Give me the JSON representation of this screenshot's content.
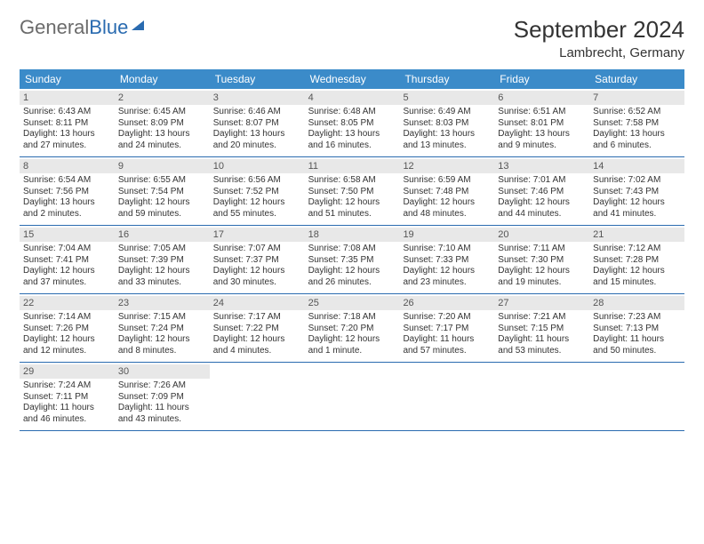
{
  "logo": {
    "part1": "General",
    "part2": "Blue"
  },
  "title": "September 2024",
  "location": "Lambrecht, Germany",
  "colors": {
    "header_bg": "#3b8bc9",
    "header_text": "#ffffff",
    "daynum_bg": "#e8e8e8",
    "rule": "#2a6bb0",
    "text": "#333333"
  },
  "dayNames": [
    "Sunday",
    "Monday",
    "Tuesday",
    "Wednesday",
    "Thursday",
    "Friday",
    "Saturday"
  ],
  "weeks": [
    [
      {
        "n": "1",
        "sr": "Sunrise: 6:43 AM",
        "ss": "Sunset: 8:11 PM",
        "d1": "Daylight: 13 hours",
        "d2": "and 27 minutes."
      },
      {
        "n": "2",
        "sr": "Sunrise: 6:45 AM",
        "ss": "Sunset: 8:09 PM",
        "d1": "Daylight: 13 hours",
        "d2": "and 24 minutes."
      },
      {
        "n": "3",
        "sr": "Sunrise: 6:46 AM",
        "ss": "Sunset: 8:07 PM",
        "d1": "Daylight: 13 hours",
        "d2": "and 20 minutes."
      },
      {
        "n": "4",
        "sr": "Sunrise: 6:48 AM",
        "ss": "Sunset: 8:05 PM",
        "d1": "Daylight: 13 hours",
        "d2": "and 16 minutes."
      },
      {
        "n": "5",
        "sr": "Sunrise: 6:49 AM",
        "ss": "Sunset: 8:03 PM",
        "d1": "Daylight: 13 hours",
        "d2": "and 13 minutes."
      },
      {
        "n": "6",
        "sr": "Sunrise: 6:51 AM",
        "ss": "Sunset: 8:01 PM",
        "d1": "Daylight: 13 hours",
        "d2": "and 9 minutes."
      },
      {
        "n": "7",
        "sr": "Sunrise: 6:52 AM",
        "ss": "Sunset: 7:58 PM",
        "d1": "Daylight: 13 hours",
        "d2": "and 6 minutes."
      }
    ],
    [
      {
        "n": "8",
        "sr": "Sunrise: 6:54 AM",
        "ss": "Sunset: 7:56 PM",
        "d1": "Daylight: 13 hours",
        "d2": "and 2 minutes."
      },
      {
        "n": "9",
        "sr": "Sunrise: 6:55 AM",
        "ss": "Sunset: 7:54 PM",
        "d1": "Daylight: 12 hours",
        "d2": "and 59 minutes."
      },
      {
        "n": "10",
        "sr": "Sunrise: 6:56 AM",
        "ss": "Sunset: 7:52 PM",
        "d1": "Daylight: 12 hours",
        "d2": "and 55 minutes."
      },
      {
        "n": "11",
        "sr": "Sunrise: 6:58 AM",
        "ss": "Sunset: 7:50 PM",
        "d1": "Daylight: 12 hours",
        "d2": "and 51 minutes."
      },
      {
        "n": "12",
        "sr": "Sunrise: 6:59 AM",
        "ss": "Sunset: 7:48 PM",
        "d1": "Daylight: 12 hours",
        "d2": "and 48 minutes."
      },
      {
        "n": "13",
        "sr": "Sunrise: 7:01 AM",
        "ss": "Sunset: 7:46 PM",
        "d1": "Daylight: 12 hours",
        "d2": "and 44 minutes."
      },
      {
        "n": "14",
        "sr": "Sunrise: 7:02 AM",
        "ss": "Sunset: 7:43 PM",
        "d1": "Daylight: 12 hours",
        "d2": "and 41 minutes."
      }
    ],
    [
      {
        "n": "15",
        "sr": "Sunrise: 7:04 AM",
        "ss": "Sunset: 7:41 PM",
        "d1": "Daylight: 12 hours",
        "d2": "and 37 minutes."
      },
      {
        "n": "16",
        "sr": "Sunrise: 7:05 AM",
        "ss": "Sunset: 7:39 PM",
        "d1": "Daylight: 12 hours",
        "d2": "and 33 minutes."
      },
      {
        "n": "17",
        "sr": "Sunrise: 7:07 AM",
        "ss": "Sunset: 7:37 PM",
        "d1": "Daylight: 12 hours",
        "d2": "and 30 minutes."
      },
      {
        "n": "18",
        "sr": "Sunrise: 7:08 AM",
        "ss": "Sunset: 7:35 PM",
        "d1": "Daylight: 12 hours",
        "d2": "and 26 minutes."
      },
      {
        "n": "19",
        "sr": "Sunrise: 7:10 AM",
        "ss": "Sunset: 7:33 PM",
        "d1": "Daylight: 12 hours",
        "d2": "and 23 minutes."
      },
      {
        "n": "20",
        "sr": "Sunrise: 7:11 AM",
        "ss": "Sunset: 7:30 PM",
        "d1": "Daylight: 12 hours",
        "d2": "and 19 minutes."
      },
      {
        "n": "21",
        "sr": "Sunrise: 7:12 AM",
        "ss": "Sunset: 7:28 PM",
        "d1": "Daylight: 12 hours",
        "d2": "and 15 minutes."
      }
    ],
    [
      {
        "n": "22",
        "sr": "Sunrise: 7:14 AM",
        "ss": "Sunset: 7:26 PM",
        "d1": "Daylight: 12 hours",
        "d2": "and 12 minutes."
      },
      {
        "n": "23",
        "sr": "Sunrise: 7:15 AM",
        "ss": "Sunset: 7:24 PM",
        "d1": "Daylight: 12 hours",
        "d2": "and 8 minutes."
      },
      {
        "n": "24",
        "sr": "Sunrise: 7:17 AM",
        "ss": "Sunset: 7:22 PM",
        "d1": "Daylight: 12 hours",
        "d2": "and 4 minutes."
      },
      {
        "n": "25",
        "sr": "Sunrise: 7:18 AM",
        "ss": "Sunset: 7:20 PM",
        "d1": "Daylight: 12 hours",
        "d2": "and 1 minute."
      },
      {
        "n": "26",
        "sr": "Sunrise: 7:20 AM",
        "ss": "Sunset: 7:17 PM",
        "d1": "Daylight: 11 hours",
        "d2": "and 57 minutes."
      },
      {
        "n": "27",
        "sr": "Sunrise: 7:21 AM",
        "ss": "Sunset: 7:15 PM",
        "d1": "Daylight: 11 hours",
        "d2": "and 53 minutes."
      },
      {
        "n": "28",
        "sr": "Sunrise: 7:23 AM",
        "ss": "Sunset: 7:13 PM",
        "d1": "Daylight: 11 hours",
        "d2": "and 50 minutes."
      }
    ],
    [
      {
        "n": "29",
        "sr": "Sunrise: 7:24 AM",
        "ss": "Sunset: 7:11 PM",
        "d1": "Daylight: 11 hours",
        "d2": "and 46 minutes."
      },
      {
        "n": "30",
        "sr": "Sunrise: 7:26 AM",
        "ss": "Sunset: 7:09 PM",
        "d1": "Daylight: 11 hours",
        "d2": "and 43 minutes."
      },
      null,
      null,
      null,
      null,
      null
    ]
  ]
}
